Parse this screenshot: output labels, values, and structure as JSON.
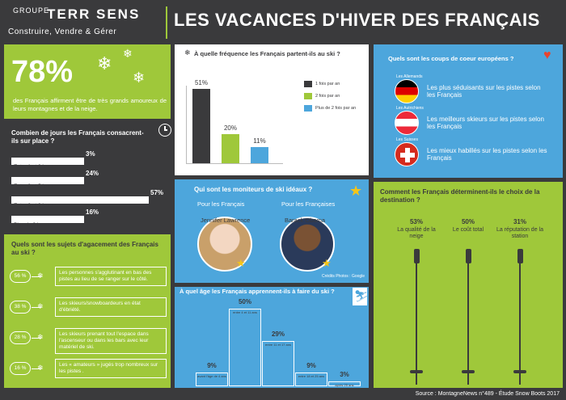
{
  "header": {
    "logo_groupe": "GROUPE",
    "logo_name": "TERR SENS",
    "logo_sub": "Construire, Vendre & Gérer",
    "title": "LES VACANCES D'HIVER DES FRANÇAIS"
  },
  "love_stat": {
    "number": "78%",
    "text": "des Français affirment être de très grands amoureux de leurs montagnes et de la neige."
  },
  "days": {
    "title": "Combien de jours les Français consacrent-ils sur place ?",
    "items": [
      {
        "label": "Entre 1 et 2 jours",
        "pct": "3%",
        "value": 3
      },
      {
        "label": "Entre 3 et 5 jours",
        "pct": "24%",
        "value": 24
      },
      {
        "label": "Entre 6 et 8 jours",
        "pct": "57%",
        "value": 57
      },
      {
        "label": "Plus de 9 jours",
        "pct": "16%",
        "value": 16
      }
    ]
  },
  "annoyance": {
    "title": "Quels sont les sujets d'agacement des Français au ski ?",
    "items": [
      {
        "pct": "56 %",
        "text": "Les personnes s'agglutinant en bas des pistes au lieu de se ranger sur le côté."
      },
      {
        "pct": "38 %",
        "text": "Les skieurs/snowboardeurs en état d'ébriété."
      },
      {
        "pct": "28 %",
        "text": "Les skieurs prenant tout l'espace dans l'ascenseur ou dans les bars avec leur matériel de ski."
      },
      {
        "pct": "16 %",
        "text": "Les « amateurs » jugés trop nombreux sur les pistes ."
      }
    ]
  },
  "frequency": {
    "title": "À quelle fréquence les Français partent-ils au ski ?",
    "colors": [
      "#3a3a3c",
      "#9fc83a",
      "#4da6dc"
    ],
    "legend": [
      "1 fois par an",
      "2 fois par an",
      "Plus de 2 fois par an"
    ],
    "pcts": [
      "51%",
      "20%",
      "11%"
    ]
  },
  "moniteurs": {
    "title": "Qui sont les moniteurs de ski idéaux ?",
    "left_label": "Pour les Français",
    "right_label": "Pour les Françaises",
    "left_name": "Jennifer Lawrence",
    "right_name": "Barack Obama",
    "credits": "Crédits Photos : Google"
  },
  "age": {
    "title": "À quel âge les Français apprennent-ils à faire du ski ?",
    "bars": [
      {
        "pct": "9%",
        "label": "avant l'âge de 4 ans",
        "value": 9
      },
      {
        "pct": "50%",
        "label": "entre 4 et 11 ans",
        "value": 50
      },
      {
        "pct": "29%",
        "label": "entre 11 et 17 ans",
        "value": 29
      },
      {
        "pct": "9%",
        "label": "entre 18 et 25 ans",
        "value": 9
      },
      {
        "pct": "3%",
        "label": "après 25 ans",
        "value": 3
      }
    ]
  },
  "europe": {
    "title": "Quels sont les coups de coeur européens ?",
    "items": [
      {
        "country": "Les Allemands",
        "text": "Les plus séduisants sur les pistes selon les Français",
        "flag": "germany"
      },
      {
        "country": "Les Autrichiens",
        "text": "Les meilleurs skieurs sur les pistes selon les Français",
        "flag": "austria"
      },
      {
        "country": "Les Suisses",
        "text": "Les mieux habillés sur les pistes selon les Français",
        "flag": "switzerland"
      }
    ]
  },
  "destination": {
    "title": "Comment les Français déterminent-ils le choix de la destination ?",
    "items": [
      {
        "pct": "53%",
        "label": "La qualité de la neige"
      },
      {
        "pct": "50%",
        "label": "Le coût total"
      },
      {
        "pct": "31%",
        "label": "La réputation de la station"
      }
    ]
  },
  "source": "Source : MontagneNews n°489 - Étude Snow Boots 2017"
}
